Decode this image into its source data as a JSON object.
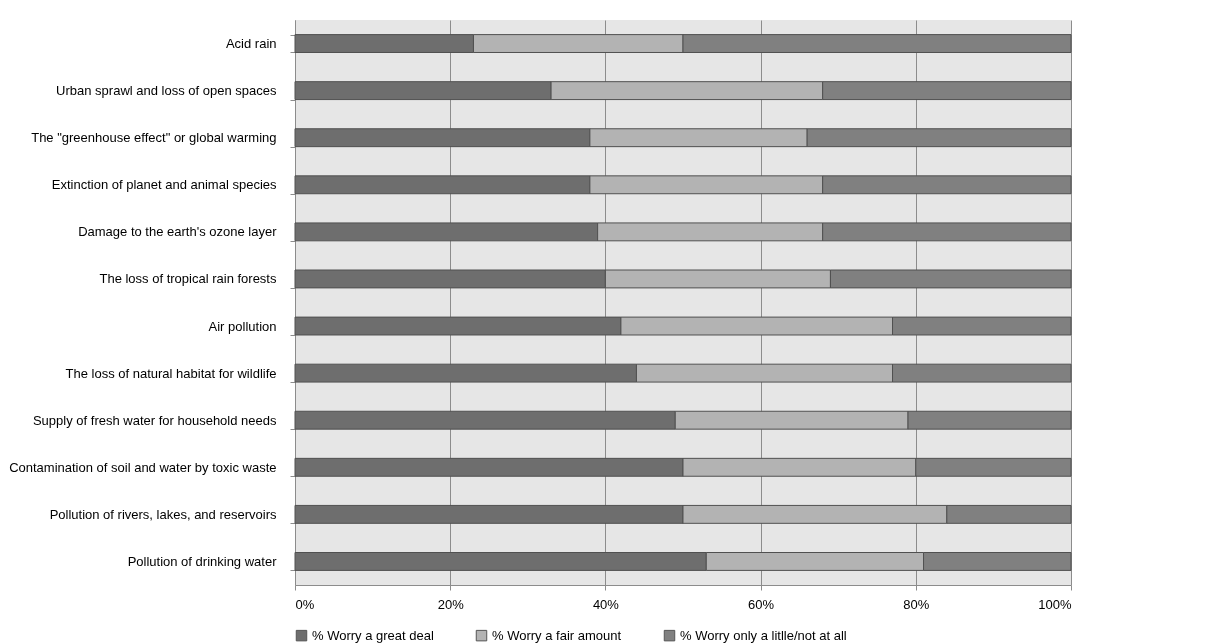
{
  "chart_data": {
    "type": "bar",
    "orientation": "horizontal",
    "stacked": true,
    "categories": [
      "Acid rain",
      "Urban sprawl and loss of open spaces",
      "The \"greenhouse effect\" or global warming",
      "Extinction of planet and animal species",
      "Damage to the earth's ozone layer",
      "The loss of tropical rain forests",
      "Air pollution",
      "The loss of natural habitat for wildlife",
      "Supply of fresh water for household needs",
      "Contamination of soil and water by toxic waste",
      "Pollution of rivers, lakes, and reservoirs",
      "Pollution of drinking water"
    ],
    "series": [
      {
        "name": "% Worry a great deal",
        "color": "#6e6e6e",
        "values": [
          23,
          33,
          38,
          38,
          39,
          40,
          42,
          44,
          49,
          50,
          50,
          53
        ]
      },
      {
        "name": "% Worry a fair amount",
        "color": "#b3b3b3",
        "values": [
          27,
          35,
          28,
          30,
          29,
          29,
          35,
          33,
          30,
          30,
          34,
          28
        ]
      },
      {
        "name": "% Worry only a litlle/not at all",
        "color": "#808080",
        "values": [
          50,
          32,
          34,
          32,
          32,
          31,
          23,
          23,
          21,
          20,
          16,
          19
        ]
      }
    ],
    "xlim": [
      0,
      100
    ],
    "xticks": [
      {
        "value": 0,
        "label": "0%"
      },
      {
        "value": 20,
        "label": "20%"
      },
      {
        "value": 40,
        "label": "40%"
      },
      {
        "value": 60,
        "label": "60%"
      },
      {
        "value": 80,
        "label": "80%"
      },
      {
        "value": 100,
        "label": "100%"
      }
    ],
    "grid": "x",
    "legend": "bottom"
  }
}
